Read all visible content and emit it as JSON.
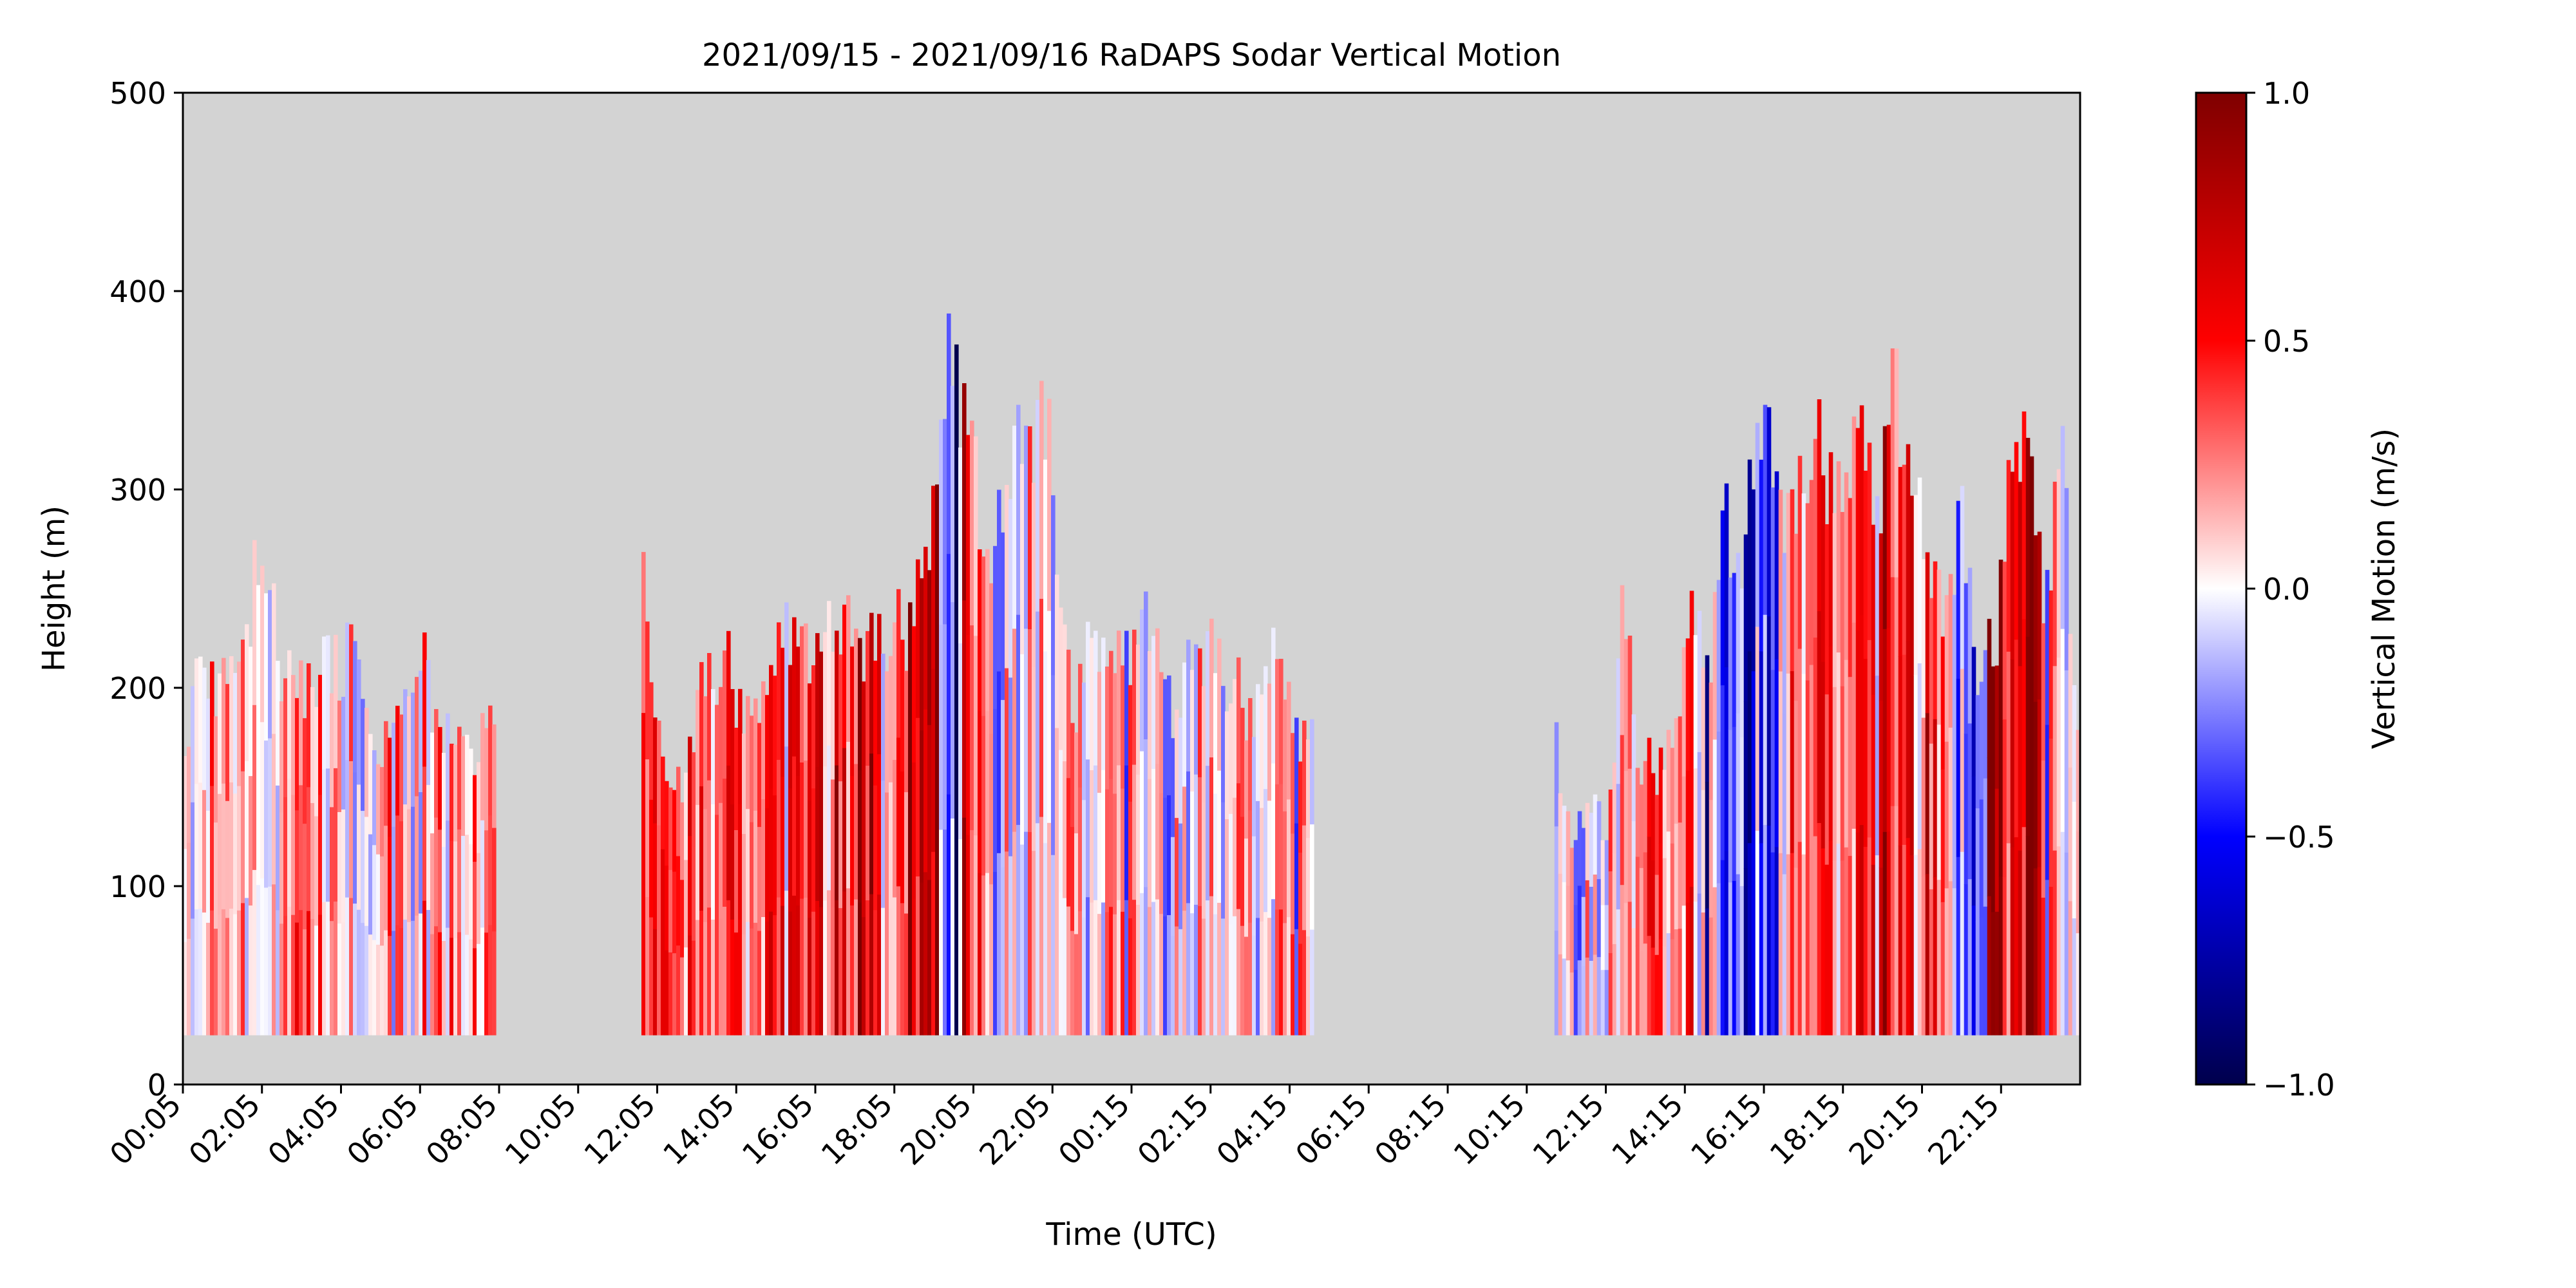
{
  "chart_data": {
    "type": "heatmap",
    "title": "2021/09/15 - 2021/09/16 RaDAPS Sodar Vertical Motion",
    "xlabel": "Time (UTC)",
    "ylabel": "Height (m)",
    "x_tick_labels": [
      "00:05",
      "02:05",
      "04:05",
      "06:05",
      "08:05",
      "10:05",
      "12:05",
      "14:05",
      "16:05",
      "18:05",
      "20:05",
      "22:05",
      "00:15",
      "02:15",
      "04:15",
      "06:15",
      "08:15",
      "10:15",
      "12:15",
      "14:15",
      "16:15",
      "18:15",
      "20:15",
      "22:15"
    ],
    "ylim": [
      0,
      500
    ],
    "y_ticks": [
      0,
      100,
      200,
      300,
      400,
      500
    ],
    "y_tick_labels": [
      "0",
      "100",
      "200",
      "300",
      "400",
      "500"
    ],
    "colorbar": {
      "label": "Vertical Motion (m/s)",
      "range": [
        -1.0,
        1.0
      ],
      "ticks": [
        -1.0,
        -0.5,
        0.0,
        0.5,
        1.0
      ],
      "tick_labels": [
        "−1.0",
        "−0.5",
        "0.0",
        "0.5",
        "1.0"
      ],
      "colormap": "seismic"
    },
    "missing_data_color": "#d3d3d3",
    "data_floor_height_m": 25,
    "segments": [
      {
        "start_hour": 0.0,
        "end_hour": 7.9,
        "top_heights_m": [
          190,
          250,
          220,
          220,
          220,
          295,
          295,
          220,
          220,
          220,
          235,
          235,
          235,
          190,
          190,
          220,
          220,
          235,
          190,
          190,
          190,
          190,
          220
        ]
      },
      {
        "start_hour": 11.6,
        "end_hour": 28.6,
        "top_heights_m": [
          295,
          160,
          175,
          220,
          235,
          200,
          220,
          250,
          235,
          250,
          250,
          235,
          250,
          250,
          300,
          400,
          355,
          280,
          340,
          355,
          355,
          200,
          250,
          235,
          235,
          260,
          200,
          235,
          235,
          220,
          200,
          250,
          190,
          190
        ]
      },
      {
        "start_hour": 34.7,
        "end_hour": 47.9,
        "top_heights_m": [
          185,
          130,
          160,
          130,
          265,
          175,
          175,
          190,
          270,
          220,
          310,
          280,
          370,
          330,
          300,
          355,
          340,
          320,
          380,
          300,
          385,
          340,
          295,
          250,
          310,
          235,
          235,
          340,
          370,
          250,
          355,
          190
        ]
      }
    ]
  }
}
